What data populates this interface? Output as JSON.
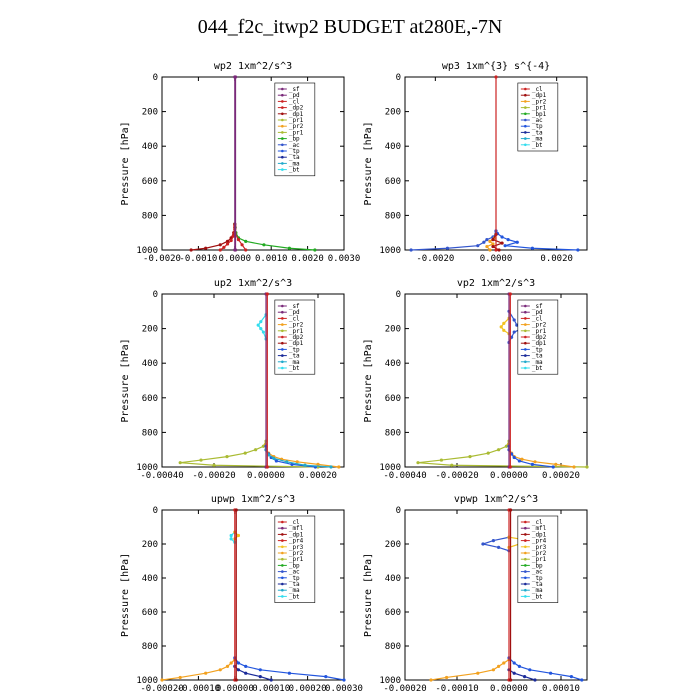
{
  "figure_title": "044_f2c_itwp2  BUDGET at280E,-7N",
  "colors": {
    "sf": "#7a2a7a",
    "pd": "#7a2a7a",
    "cl": "#cc2222",
    "dp1": "#a01010",
    "dp2": "#cc2222",
    "dp4": "#cc2222",
    "pr1": "#aabb33",
    "pr2": "#f2a11f",
    "pr3": "#f2c21f",
    "pr4": "#cc2222",
    "bp": "#22aa22",
    "bp1": "#22aa22",
    "ac": "#3355cc",
    "tp": "#2255dd",
    "ta": "#1a2a99",
    "ma": "#22aacc",
    "bt": "#33ddee",
    "mfl": "#7a2a7a"
  },
  "chart_data": [
    {
      "type": "line",
      "title": "wp2  1xm^2/s^3",
      "ylabel": "Pressure [hPa]",
      "xlim": [
        -0.002,
        0.003
      ],
      "ylim": [
        1000,
        0
      ],
      "xticks": [
        -0.002,
        -0.001,
        0,
        0.001,
        0.002,
        0.003
      ],
      "xticklabels": [
        "-0.0020",
        "-0.0010",
        "0.0000",
        "0.0010",
        "0.0020",
        "0.0030"
      ],
      "yticks": [
        0,
        200,
        400,
        600,
        800,
        1000
      ],
      "yticklabels": [
        "0",
        "200",
        "400",
        "600",
        "800",
        "1000"
      ],
      "legend": [
        "_sf",
        "_pd",
        "_cl",
        "_dp2",
        "_dp1",
        "_pr1",
        "_pr2",
        "_pr1",
        "_bp",
        "_ac",
        "_tp",
        "_ta",
        "_ma",
        "_bt"
      ],
      "legend_keys": [
        "sf",
        "pd",
        "cl",
        "dp2",
        "dp1",
        "pr1",
        "pr2",
        "pr1",
        "bp",
        "ac",
        "tp",
        "ta",
        "ma",
        "bt"
      ],
      "series": [
        {
          "key": "bp",
          "y": [
            1000,
            990,
            970,
            950,
            930,
            900,
            870,
            850
          ],
          "x": [
            0.0022,
            0.0015,
            0.0008,
            0.0003,
            0.0001,
            3e-05,
            1e-05,
            0
          ]
        },
        {
          "key": "dp1",
          "y": [
            1000,
            990,
            970,
            950,
            930,
            900,
            870,
            850
          ],
          "x": [
            -0.0012,
            -0.0008,
            -0.0004,
            -0.0002,
            -0.0001,
            -3e-05,
            0,
            0
          ]
        },
        {
          "key": "dp2",
          "y": [
            1000,
            985,
            965,
            945,
            920,
            900,
            880,
            860
          ],
          "x": [
            -0.0004,
            -0.0003,
            -0.0002,
            -0.0001,
            -4e-05,
            0,
            0,
            0
          ]
        },
        {
          "key": "cl",
          "y": [
            1000,
            970,
            940,
            900
          ],
          "x": [
            0.0003,
            0.0002,
            0.0001,
            0
          ]
        },
        {
          "key": "sf",
          "y": [
            0,
            1000
          ],
          "x": [
            0,
            0
          ]
        },
        {
          "key": "pd",
          "y": [
            0,
            1000
          ],
          "x": [
            2e-05,
            2e-05
          ]
        }
      ]
    },
    {
      "type": "line",
      "title": "wp3  1xm^{3} s^{-4}",
      "ylabel": "Pressure [hPa]",
      "xlim": [
        -0.003,
        0.003
      ],
      "ylim": [
        1000,
        0
      ],
      "xticks": [
        -0.002,
        0,
        0.002
      ],
      "xticklabels": [
        "-0.0020",
        "0.0000",
        "0.0020"
      ],
      "yticks": [
        0,
        200,
        400,
        600,
        800,
        1000
      ],
      "yticklabels": [
        "0",
        "200",
        "400",
        "600",
        "800",
        "1000"
      ],
      "legend": [
        "_cl",
        "_dp1",
        "_pr2",
        "_pr1",
        "_bp1",
        "_ac",
        "_tp",
        "_ta",
        "_ma",
        "_bt"
      ],
      "legend_keys": [
        "cl",
        "dp1",
        "pr2",
        "pr1",
        "bp1",
        "ac",
        "tp",
        "ta",
        "ma",
        "bt"
      ],
      "series": [
        {
          "key": "tp",
          "y": [
            1000,
            990,
            975,
            955,
            940,
            925,
            905,
            890
          ],
          "x": [
            0.0027,
            0.0012,
            0.0003,
            0.0007,
            0.0004,
            0.0002,
            5e-05,
            0
          ]
        },
        {
          "key": "ac",
          "y": [
            1000,
            990,
            975,
            955,
            940,
            925,
            905,
            890
          ],
          "x": [
            -0.0028,
            -0.0016,
            -0.0006,
            -0.0004,
            -0.0003,
            -0.0001,
            0,
            0
          ]
        },
        {
          "key": "pr2",
          "y": [
            1000,
            980,
            965,
            950,
            930,
            910
          ],
          "x": [
            -0.0002,
            -0.0003,
            -0.0001,
            -0.0002,
            -5e-05,
            0
          ]
        },
        {
          "key": "dp1",
          "y": [
            1000,
            980,
            960,
            940,
            910
          ],
          "x": [
            0.0001,
            -0.0001,
            0.0002,
            -0.0001,
            0
          ]
        },
        {
          "key": "cl",
          "y": [
            0,
            1000
          ],
          "x": [
            0,
            0
          ]
        }
      ]
    },
    {
      "type": "line",
      "title": "up2  1xm^2/s^3",
      "ylabel": "Pressure [hPa]",
      "xlim": [
        -0.0004,
        0.0003
      ],
      "ylim": [
        1000,
        0
      ],
      "xticks": [
        -0.0004,
        -0.0002,
        0,
        0.0002
      ],
      "xticklabels": [
        "-0.00040",
        "-0.00020",
        "0.00000",
        "0.00020"
      ],
      "yticks": [
        0,
        200,
        400,
        600,
        800,
        1000
      ],
      "yticklabels": [
        "0",
        "200",
        "400",
        "600",
        "800",
        "1000"
      ],
      "legend": [
        "_sf",
        "_pd",
        "_cl",
        "_pr2",
        "_pr1",
        "_dp2",
        "_dp1",
        "_tp",
        "_ta",
        "_ma",
        "_bt"
      ],
      "legend_keys": [
        "sf",
        "pd",
        "cl",
        "pr2",
        "pr1",
        "dp2",
        "dp1",
        "tp",
        "ta",
        "ma",
        "bt"
      ],
      "series": [
        {
          "key": "pr1",
          "y": [
            1000,
            990,
            975,
            960,
            940,
            920,
            900,
            880,
            850
          ],
          "x": [
            0.0002,
            -0.0002,
            -0.00033,
            -0.00025,
            -0.00015,
            -8e-05,
            -4e-05,
            -1e-05,
            0
          ]
        },
        {
          "key": "pr2",
          "y": [
            1000,
            985,
            970,
            955,
            940,
            920,
            900,
            870
          ],
          "x": [
            0.00028,
            0.0002,
            0.00012,
            6e-05,
            3e-05,
            1e-05,
            0,
            0
          ]
        },
        {
          "key": "tp",
          "y": [
            1000,
            985,
            965,
            945,
            925,
            900,
            880
          ],
          "x": [
            0.00019,
            0.0001,
            4e-05,
            2e-05,
            1e-05,
            0,
            0
          ]
        },
        {
          "key": "ma",
          "y": [
            1000,
            990,
            970,
            950,
            930,
            900
          ],
          "x": [
            0.00025,
            0.00015,
            8e-05,
            3e-05,
            1e-05,
            0
          ]
        },
        {
          "key": "bt",
          "y": [
            120,
            160,
            180,
            200,
            220,
            260
          ],
          "x": [
            0,
            -2e-05,
            -3e-05,
            -2e-05,
            -1e-05,
            0
          ]
        },
        {
          "key": "sf",
          "y": [
            0,
            1000
          ],
          "x": [
            0,
            0
          ]
        },
        {
          "key": "cl",
          "y": [
            0,
            1000
          ],
          "x": [
            5e-06,
            5e-06
          ]
        }
      ]
    },
    {
      "type": "line",
      "title": "vp2  1xm^2/s^3",
      "ylabel": "Pressure [hPa]",
      "xlim": [
        -0.0004,
        0.0003
      ],
      "ylim": [
        1000,
        0
      ],
      "xticks": [
        -0.0004,
        -0.0002,
        0,
        0.0002
      ],
      "xticklabels": [
        "-0.00040",
        "-0.00020",
        "0.00000",
        "0.00020"
      ],
      "yticks": [
        0,
        200,
        400,
        600,
        800,
        1000
      ],
      "yticklabels": [
        "0",
        "200",
        "400",
        "600",
        "800",
        "1000"
      ],
      "legend": [
        "_sf",
        "_pd",
        "_cl",
        "_pr2",
        "_pr1",
        "_dp2",
        "_dp1",
        "_tp",
        "_ta",
        "_ma",
        "_bt"
      ],
      "legend_keys": [
        "sf",
        "pd",
        "cl",
        "pr2",
        "pr1",
        "dp2",
        "dp1",
        "tp",
        "ta",
        "ma",
        "bt"
      ],
      "series": [
        {
          "key": "pr1",
          "y": [
            1000,
            990,
            975,
            960,
            940,
            920,
            900,
            880,
            850
          ],
          "x": [
            0.0003,
            -0.00022,
            -0.00035,
            -0.00026,
            -0.00015,
            -8e-05,
            -4e-05,
            -1e-05,
            0
          ]
        },
        {
          "key": "pr2",
          "y": [
            1000,
            985,
            970,
            955,
            940,
            920,
            900,
            870
          ],
          "x": [
            0.00025,
            0.00018,
            0.0001,
            5e-05,
            2e-05,
            1e-05,
            0,
            0
          ]
        },
        {
          "key": "tp",
          "y": [
            1000,
            985,
            965,
            945,
            925,
            900,
            880
          ],
          "x": [
            0.00017,
            9e-05,
            4e-05,
            2e-05,
            1e-05,
            0,
            0
          ]
        },
        {
          "key": "ac",
          "y": [
            100,
            150,
            180,
            200,
            220,
            250,
            280
          ],
          "x": [
            0,
            2e-05,
            3e-05,
            5e-05,
            2e-05,
            1e-05,
            0
          ]
        },
        {
          "key": "pr3",
          "y": [
            140,
            170,
            190,
            210,
            230
          ],
          "x": [
            0,
            -2e-05,
            -3e-05,
            -2e-05,
            0
          ]
        },
        {
          "key": "sf",
          "y": [
            0,
            1000
          ],
          "x": [
            0,
            0
          ]
        },
        {
          "key": "cl",
          "y": [
            0,
            1000
          ],
          "x": [
            5e-06,
            5e-06
          ]
        }
      ]
    },
    {
      "type": "line",
      "title": "upwp  1xm^2/s^3",
      "ylabel": "Pressure [hPa]",
      "xlim": [
        -0.0002,
        0.0003
      ],
      "ylim": [
        1000,
        0
      ],
      "xticks": [
        -0.0002,
        -0.0001,
        0,
        0.0001,
        0.0002,
        0.0003
      ],
      "xticklabels": [
        "-0.00020",
        "-0.00010",
        "0.00000",
        "0.00010",
        "0.00020",
        "0.00030"
      ],
      "yticks": [
        0,
        200,
        400,
        600,
        800,
        1000
      ],
      "yticklabels": [
        "0",
        "200",
        "400",
        "600",
        "800",
        "1000"
      ],
      "legend": [
        "_cl",
        "_mfl",
        "_dp1",
        "_pr4",
        "_pr3",
        "_pr2",
        "_pr1",
        "_bp",
        "_ac",
        "_tp",
        "_ta",
        "_ma",
        "_bt"
      ],
      "legend_keys": [
        "cl",
        "mfl",
        "dp1",
        "pr4",
        "pr3",
        "pr2",
        "pr1",
        "bp",
        "ac",
        "tp",
        "ta",
        "ma",
        "bt"
      ],
      "series": [
        {
          "key": "pr2",
          "y": [
            1000,
            985,
            960,
            940,
            920,
            900,
            880
          ],
          "x": [
            -0.0002,
            -0.00015,
            -8e-05,
            -4e-05,
            -2e-05,
            -1e-05,
            0
          ]
        },
        {
          "key": "tp",
          "y": [
            1000,
            980,
            960,
            940,
            920,
            900,
            870
          ],
          "x": [
            0.0003,
            0.00025,
            0.00015,
            7e-05,
            3e-05,
            1e-05,
            0
          ]
        },
        {
          "key": "ta",
          "y": [
            1000,
            980,
            960,
            940,
            920
          ],
          "x": [
            0.0001,
            7e-05,
            3e-05,
            1e-05,
            0
          ]
        },
        {
          "key": "bt",
          "y": [
            130,
            150,
            170,
            190
          ],
          "x": [
            0,
            -1e-05,
            -1e-05,
            0
          ]
        },
        {
          "key": "pr3",
          "y": [
            130,
            150,
            170
          ],
          "x": [
            0,
            1e-05,
            0
          ]
        },
        {
          "key": "cl",
          "y": [
            0,
            1000
          ],
          "x": [
            0,
            0
          ]
        },
        {
          "key": "dp1",
          "y": [
            0,
            1000
          ],
          "x": [
            4e-06,
            4e-06
          ]
        }
      ]
    },
    {
      "type": "line",
      "title": "vpwp  1xm^2/s^3",
      "ylabel": "Pressure [hPa]",
      "xlim": [
        -0.0002,
        0.00015
      ],
      "ylim": [
        1000,
        0
      ],
      "xticks": [
        -0.0002,
        -0.0001,
        0,
        0.0001
      ],
      "xticklabels": [
        "-0.00020",
        "-0.00010",
        "0.00000",
        "0.00010"
      ],
      "yticks": [
        0,
        200,
        400,
        600,
        800,
        1000
      ],
      "yticklabels": [
        "0",
        "200",
        "400",
        "600",
        "800",
        "1000"
      ],
      "legend": [
        "_cl",
        "_mfl",
        "_dp1",
        "_pr4",
        "_pr3",
        "_pr2",
        "_pr1",
        "_bp",
        "_ac",
        "_tp",
        "_ta",
        "_ma",
        "_bt"
      ],
      "legend_keys": [
        "cl",
        "mfl",
        "dp1",
        "pr4",
        "pr3",
        "pr2",
        "pr1",
        "bp",
        "ac",
        "tp",
        "ta",
        "ma",
        "bt"
      ],
      "series": [
        {
          "key": "pr2",
          "y": [
            1000,
            985,
            960,
            940,
            920,
            900,
            880
          ],
          "x": [
            -0.00015,
            -0.00012,
            -6e-05,
            -3e-05,
            -2e-05,
            -1e-05,
            0
          ]
        },
        {
          "key": "tp",
          "y": [
            1000,
            980,
            960,
            940,
            920,
            900,
            870
          ],
          "x": [
            0.00014,
            0.00012,
            8e-05,
            4e-05,
            2e-05,
            1e-05,
            0
          ]
        },
        {
          "key": "ta",
          "y": [
            1000,
            980,
            960,
            940
          ],
          "x": [
            5e-05,
            3e-05,
            1e-05,
            0
          ]
        },
        {
          "key": "ac",
          "y": [
            160,
            180,
            200,
            220,
            240
          ],
          "x": [
            0,
            -3e-05,
            -5e-05,
            -2e-05,
            0
          ]
        },
        {
          "key": "pr3",
          "y": [
            160,
            180,
            200,
            220
          ],
          "x": [
            0,
            4e-05,
            2e-05,
            0
          ]
        },
        {
          "key": "cl",
          "y": [
            0,
            1000
          ],
          "x": [
            0,
            0
          ]
        },
        {
          "key": "dp1",
          "y": [
            0,
            1000
          ],
          "x": [
            3e-06,
            3e-06
          ]
        }
      ]
    }
  ]
}
